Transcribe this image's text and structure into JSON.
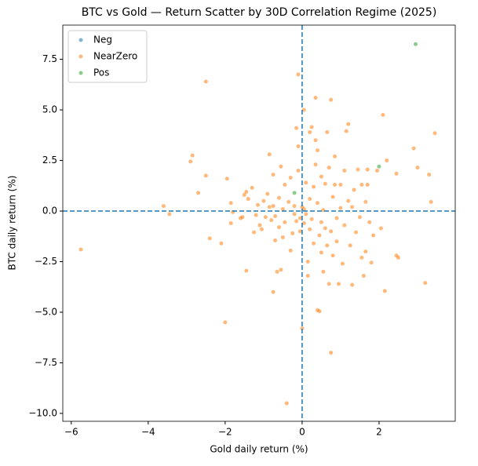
{
  "chart_data": {
    "type": "scatter",
    "title": "BTC vs Gold — Return Scatter by 30D Correlation Regime (2025)",
    "xlabel": "Gold daily return (%)",
    "ylabel": "BTC daily return (%)",
    "xlim": [
      -6.22,
      3.98
    ],
    "ylim": [
      -10.39,
      9.19
    ],
    "xticks": [
      {
        "value": -6,
        "label": "−6"
      },
      {
        "value": -4,
        "label": "−4"
      },
      {
        "value": -2,
        "label": "−2"
      },
      0,
      2
    ],
    "yticks": [
      {
        "value": -10,
        "label": "−10.0"
      },
      {
        "value": -7.5,
        "label": "−7.5"
      },
      {
        "value": -5,
        "label": "−5.0"
      },
      {
        "value": -2.5,
        "label": "−2.5"
      },
      {
        "value": 0,
        "label": "0.0"
      },
      {
        "value": 2.5,
        "label": "2.5"
      },
      {
        "value": 5,
        "label": "5.0"
      },
      {
        "value": 7.5,
        "label": "7.5"
      }
    ],
    "hlines": [
      0
    ],
    "vlines": [
      0
    ],
    "reference_line_color": "#1f77b4",
    "legend": "upper-left",
    "grid": false,
    "series": [
      {
        "name": "Neg",
        "color": "#1f77b4",
        "x": [],
        "y": []
      },
      {
        "name": "NearZero",
        "color": "#ff7f0e",
        "x": [
          -5.75,
          -3.6,
          -3.45,
          -2.9,
          -2.85,
          -2.7,
          -2.5,
          -2.5,
          -2.4,
          -2.1,
          -2.0,
          -1.95,
          -1.85,
          -1.85,
          -1.8,
          -1.6,
          -1.5,
          -1.45,
          -1.45,
          -1.4,
          -1.3,
          -1.25,
          -1.2,
          -1.15,
          -1.1,
          -1.05,
          -1.0,
          -0.95,
          -0.9,
          -0.85,
          -0.85,
          -0.8,
          -0.75,
          -0.75,
          -0.7,
          -0.7,
          -0.65,
          -0.6,
          -0.6,
          -0.55,
          -0.55,
          -0.5,
          -0.5,
          -0.45,
          -0.45,
          -0.4,
          -0.35,
          -0.3,
          -0.3,
          -0.25,
          -0.2,
          -0.2,
          -0.15,
          -0.15,
          -0.1,
          -0.1,
          -0.1,
          -0.05,
          -0.05,
          0.0,
          0.0,
          0.05,
          0.05,
          0.1,
          0.1,
          0.15,
          0.15,
          0.2,
          0.2,
          0.2,
          0.25,
          0.25,
          0.3,
          0.3,
          0.35,
          0.35,
          0.35,
          0.4,
          0.4,
          0.4,
          0.45,
          0.45,
          0.5,
          0.5,
          0.5,
          0.55,
          0.55,
          0.6,
          0.6,
          0.65,
          0.65,
          0.7,
          0.7,
          0.75,
          0.75,
          0.75,
          0.8,
          0.8,
          0.85,
          0.85,
          0.9,
          0.9,
          0.95,
          1.0,
          1.0,
          1.05,
          1.1,
          1.1,
          1.15,
          1.2,
          1.2,
          1.25,
          1.3,
          1.3,
          1.35,
          1.4,
          1.45,
          1.5,
          1.55,
          1.55,
          1.6,
          1.65,
          1.65,
          1.7,
          1.7,
          1.75,
          1.8,
          1.85,
          1.95,
          2.05,
          2.1,
          2.15,
          2.2,
          2.45,
          2.45,
          2.5,
          2.9,
          3.0,
          3.2,
          3.3,
          3.35,
          3.45,
          -1.55,
          -0.75,
          0.05
        ],
        "y": [
          -1.9,
          0.25,
          -0.15,
          2.45,
          2.75,
          0.9,
          6.4,
          1.75,
          -1.35,
          -1.6,
          -5.5,
          1.6,
          0.4,
          -0.6,
          -0.05,
          -0.35,
          0.8,
          0.95,
          -2.95,
          0.6,
          1.15,
          -1.05,
          -0.2,
          0.3,
          -0.7,
          -0.9,
          0.5,
          -0.3,
          0.85,
          2.8,
          0.2,
          -0.45,
          -4.0,
          1.8,
          -0.25,
          -1.45,
          -3.0,
          0.65,
          -0.8,
          2.2,
          -2.9,
          0.1,
          -1.3,
          1.3,
          -0.55,
          -9.5,
          0.45,
          -1.95,
          1.65,
          -1.1,
          0.25,
          -0.15,
          4.1,
          -0.5,
          6.75,
          2.0,
          3.2,
          -0.35,
          -1.0,
          -5.8,
          0.2,
          5.0,
          -0.6,
          1.4,
          -0.15,
          -2.5,
          -3.2,
          0.6,
          3.9,
          -0.9,
          4.15,
          -0.4,
          1.2,
          -1.6,
          2.3,
          5.6,
          3.5,
          -4.9,
          3.0,
          0.4,
          -1.2,
          -4.95,
          1.7,
          -0.55,
          -2.05,
          0.05,
          -3.0,
          -0.85,
          1.35,
          3.9,
          -1.7,
          -3.6,
          2.15,
          5.5,
          -7.0,
          -1.0,
          0.7,
          -2.2,
          1.3,
          2.7,
          -0.35,
          -1.5,
          -3.6,
          0.15,
          1.3,
          -2.6,
          2.0,
          -0.7,
          3.95,
          4.3,
          0.5,
          -1.7,
          -3.65,
          0.2,
          1.05,
          -1.05,
          2.05,
          -0.3,
          -2.3,
          1.3,
          -3.2,
          0.45,
          -2.0,
          2.05,
          1.3,
          -0.55,
          -2.55,
          -1.2,
          2.0,
          -0.85,
          4.75,
          -3.95,
          2.5,
          1.85,
          -2.2,
          -2.3,
          3.1,
          2.15,
          -3.55,
          1.8,
          0.45,
          3.85,
          -0.3,
          0.25,
          0.1
        ]
      },
      {
        "name": "Pos",
        "color": "#2ca02c",
        "x": [
          2.95,
          2.0,
          -0.2
        ],
        "y": [
          8.25,
          2.2,
          0.9
        ]
      }
    ]
  }
}
